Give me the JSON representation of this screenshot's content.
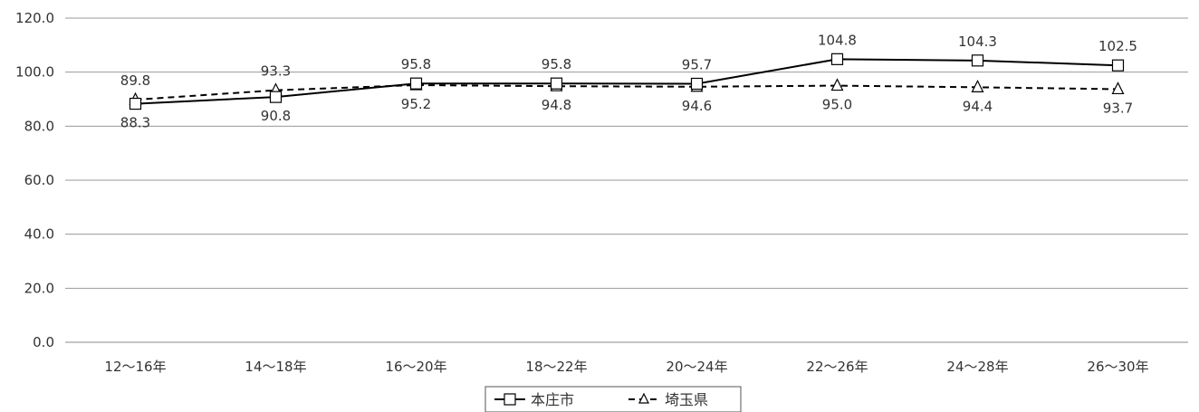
{
  "chart_data": {
    "type": "line",
    "categories": [
      "12～16年",
      "14～18年",
      "16～20年",
      "18～22年",
      "20～24年",
      "22～26年",
      "24～28年",
      "26～30年"
    ],
    "series": [
      {
        "name": "本庄市",
        "values": [
          88.3,
          90.8,
          95.8,
          95.8,
          95.7,
          104.8,
          104.3,
          102.5
        ],
        "marker": "square",
        "line_style": "solid",
        "color": "#000000"
      },
      {
        "name": "埼玉県",
        "values": [
          89.8,
          93.3,
          95.2,
          94.8,
          94.6,
          95.0,
          94.4,
          93.7
        ],
        "marker": "triangle",
        "line_style": "dashed",
        "color": "#000000"
      }
    ],
    "ylim": [
      0,
      120
    ],
    "yticks": [
      "0.0",
      "20.0",
      "40.0",
      "60.0",
      "80.0",
      "100.0",
      "120.0"
    ],
    "grid": true,
    "legend_position": "bottom-center"
  }
}
